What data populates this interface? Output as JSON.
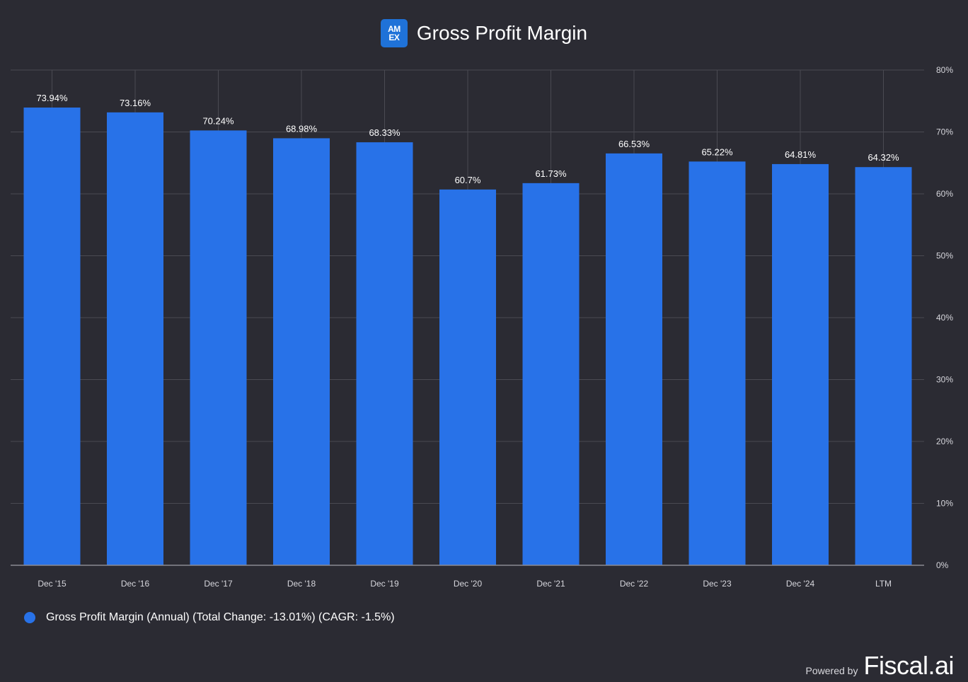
{
  "header": {
    "logo_line1": "AM",
    "logo_line2": "EX",
    "title": "Gross Profit Margin"
  },
  "colors": {
    "background": "#2b2b33",
    "bar": "#2872e8",
    "grid": "#4a4a52",
    "axis": "#8a8a92",
    "tick_text": "#d6d6dc"
  },
  "chart_data": {
    "type": "bar",
    "title": "Gross Profit Margin",
    "categories": [
      "Dec '15",
      "Dec '16",
      "Dec '17",
      "Dec '18",
      "Dec '19",
      "Dec '20",
      "Dec '21",
      "Dec '22",
      "Dec '23",
      "Dec '24",
      "LTM"
    ],
    "series": [
      {
        "name": "Gross Profit Margin (Annual)",
        "values": [
          73.94,
          73.16,
          70.24,
          68.98,
          68.33,
          60.7,
          61.73,
          66.53,
          65.22,
          64.81,
          64.32
        ],
        "labels": [
          "73.94%",
          "73.16%",
          "70.24%",
          "68.98%",
          "68.33%",
          "60.7%",
          "61.73%",
          "66.53%",
          "65.22%",
          "64.81%",
          "64.32%"
        ]
      }
    ],
    "ylim": [
      0,
      80
    ],
    "yticks": [
      0,
      10,
      20,
      30,
      40,
      50,
      60,
      70,
      80
    ],
    "ytick_labels": [
      "0%",
      "10%",
      "20%",
      "30%",
      "40%",
      "50%",
      "60%",
      "70%",
      "80%"
    ],
    "y_axis_side": "right",
    "grid": true,
    "xlabel": "",
    "ylabel": "",
    "legend_position": "bottom-left"
  },
  "legend": {
    "text": "Gross Profit Margin (Annual) (Total Change: -13.01%) (CAGR: -1.5%)"
  },
  "footer": {
    "powered_by": "Powered by",
    "brand": "Fiscal.ai"
  }
}
